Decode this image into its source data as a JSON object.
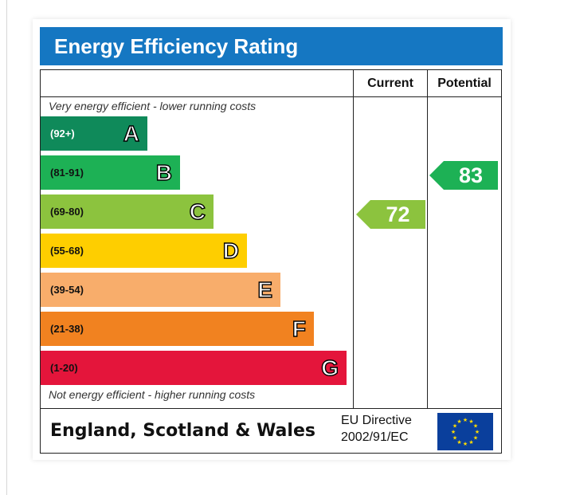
{
  "title": "Energy Efficiency Rating",
  "columns": {
    "current": "Current",
    "potential": "Potential"
  },
  "top_note": "Very energy efficient - lower running costs",
  "bottom_note": "Not energy efficient - higher running costs",
  "footer": {
    "region": "England, Scotland & Wales",
    "directive_line1": "EU Directive",
    "directive_line2": "2002/91/EC",
    "flag_icon": "eu-flag-icon"
  },
  "colors": {
    "header": "#1577c2",
    "A": "#0f8a5a",
    "B": "#1db155",
    "C": "#8cc33e",
    "D": "#fece00",
    "E": "#f8ad6b",
    "F": "#f18220",
    "G": "#e4153b"
  },
  "chart_data": {
    "type": "bar",
    "categories": [
      "A",
      "B",
      "C",
      "D",
      "E",
      "F",
      "G"
    ],
    "ranges": [
      "(92+)",
      "(81-91)",
      "(69-80)",
      "(55-68)",
      "(39-54)",
      "(21-38)",
      "(1-20)"
    ],
    "current": {
      "value": 72,
      "band": "C"
    },
    "potential": {
      "value": 83,
      "band": "B"
    }
  }
}
